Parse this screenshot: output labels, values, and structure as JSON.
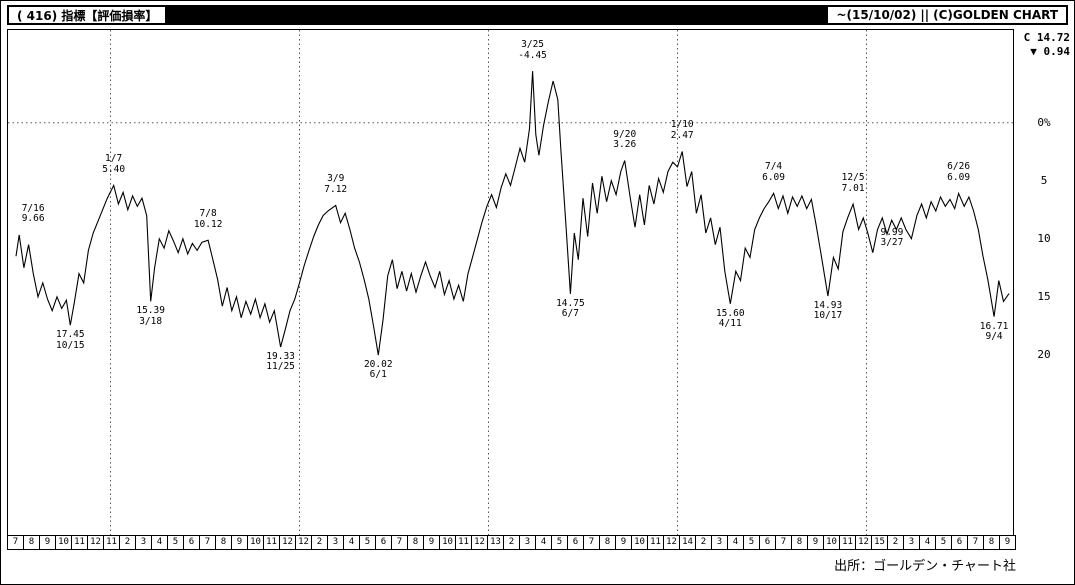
{
  "header": {
    "title": "( 416) 指標【評価損率】",
    "date_range": "~(15/10/02)",
    "separator": "||",
    "copyright": "(C)GOLDEN CHART"
  },
  "quote": {
    "close_label": "C",
    "close": "14.72",
    "change_arrow": "▼",
    "change": "0.94"
  },
  "axis": {
    "y_ticks": [
      {
        "label": "0%",
        "value": 0
      },
      {
        "label": "5",
        "value": 5
      },
      {
        "label": "10",
        "value": 10
      },
      {
        "label": "15",
        "value": 15
      },
      {
        "label": "20",
        "value": 20
      }
    ],
    "year_grid_t": [
      6,
      18,
      30,
      42,
      54
    ],
    "x_months": [
      "7",
      "8",
      "9",
      "10",
      "11",
      "12",
      "11",
      "2",
      "3",
      "4",
      "5",
      "6",
      "7",
      "8",
      "9",
      "10",
      "11",
      "12",
      "12",
      "2",
      "3",
      "4",
      "5",
      "6",
      "7",
      "8",
      "9",
      "10",
      "11",
      "12",
      "13",
      "2",
      "3",
      "4",
      "5",
      "6",
      "7",
      "8",
      "9",
      "10",
      "11",
      "12",
      "14",
      "2",
      "3",
      "4",
      "5",
      "6",
      "7",
      "8",
      "9",
      "10",
      "11",
      "12",
      "15",
      "2",
      "3",
      "4",
      "5",
      "6",
      "7",
      "8",
      "9"
    ]
  },
  "footer": {
    "source": "出所：ゴールデン・チャート社"
  },
  "chart_data": {
    "type": "line",
    "title": "指標【評価損率】 (valuation loss ratio, %, inverted axis)",
    "x_unit": "months since 2010-07 (weekly series, t fractional)",
    "x_range": [
      0,
      63.5
    ],
    "y_axis": {
      "inverted": true,
      "ticks": [
        0,
        5,
        10,
        15,
        20
      ],
      "top_value": -8,
      "bottom_value": 35.5
    },
    "grid": {
      "vertical_dotted_at_january": true,
      "horizontal_dotted_at_zero": true
    },
    "series": [
      {
        "name": "評価損率",
        "color": "#000000",
        "points": [
          [
            0,
            11.5
          ],
          [
            0.2,
            9.66
          ],
          [
            0.5,
            12.5
          ],
          [
            0.8,
            10.5
          ],
          [
            1.1,
            13
          ],
          [
            1.4,
            15
          ],
          [
            1.7,
            13.8
          ],
          [
            2,
            15.2
          ],
          [
            2.3,
            16.2
          ],
          [
            2.6,
            15
          ],
          [
            2.9,
            16
          ],
          [
            3.2,
            15.3
          ],
          [
            3.45,
            17.45
          ],
          [
            3.7,
            15.5
          ],
          [
            4,
            13
          ],
          [
            4.3,
            13.8
          ],
          [
            4.6,
            11
          ],
          [
            4.9,
            9.5
          ],
          [
            5.2,
            8.5
          ],
          [
            5.5,
            7.5
          ],
          [
            5.8,
            6.5
          ],
          [
            6.2,
            5.4
          ],
          [
            6.5,
            7
          ],
          [
            6.8,
            6
          ],
          [
            7.1,
            7.5
          ],
          [
            7.4,
            6.3
          ],
          [
            7.7,
            7.2
          ],
          [
            8,
            6.5
          ],
          [
            8.3,
            8
          ],
          [
            8.55,
            15.39
          ],
          [
            8.8,
            12.5
          ],
          [
            9.1,
            10
          ],
          [
            9.4,
            10.8
          ],
          [
            9.7,
            9.3
          ],
          [
            10,
            10.2
          ],
          [
            10.3,
            11.2
          ],
          [
            10.6,
            10
          ],
          [
            10.9,
            11.3
          ],
          [
            11.2,
            10.4
          ],
          [
            11.5,
            11
          ],
          [
            11.8,
            10.3
          ],
          [
            12.2,
            10.12
          ],
          [
            12.5,
            11.8
          ],
          [
            12.8,
            13.5
          ],
          [
            13.1,
            15.8
          ],
          [
            13.4,
            14.2
          ],
          [
            13.7,
            16.2
          ],
          [
            14,
            15
          ],
          [
            14.3,
            16.8
          ],
          [
            14.6,
            15.4
          ],
          [
            14.9,
            16.5
          ],
          [
            15.2,
            15.2
          ],
          [
            15.5,
            16.8
          ],
          [
            15.8,
            15.6
          ],
          [
            16.1,
            17.2
          ],
          [
            16.4,
            16.2
          ],
          [
            16.8,
            19.33
          ],
          [
            17.1,
            17.8
          ],
          [
            17.4,
            16.2
          ],
          [
            17.7,
            15.2
          ],
          [
            18,
            13.8
          ],
          [
            18.3,
            12.3
          ],
          [
            18.6,
            11
          ],
          [
            18.9,
            9.8
          ],
          [
            19.2,
            8.8
          ],
          [
            19.5,
            8
          ],
          [
            19.8,
            7.6
          ],
          [
            20.3,
            7.12
          ],
          [
            20.6,
            8.6
          ],
          [
            20.9,
            7.8
          ],
          [
            21.2,
            9.2
          ],
          [
            21.5,
            10.8
          ],
          [
            21.8,
            12
          ],
          [
            22.1,
            13.5
          ],
          [
            22.4,
            15.2
          ],
          [
            22.7,
            17.5
          ],
          [
            23,
            20.02
          ],
          [
            23.3,
            17
          ],
          [
            23.6,
            13.2
          ],
          [
            23.9,
            11.8
          ],
          [
            24.2,
            14.3
          ],
          [
            24.5,
            12.8
          ],
          [
            24.8,
            14.5
          ],
          [
            25.1,
            13
          ],
          [
            25.4,
            14.6
          ],
          [
            25.7,
            13.2
          ],
          [
            26,
            12
          ],
          [
            26.3,
            13.2
          ],
          [
            26.6,
            14.2
          ],
          [
            26.9,
            12.8
          ],
          [
            27.2,
            14.8
          ],
          [
            27.5,
            13.6
          ],
          [
            27.8,
            15.2
          ],
          [
            28.1,
            14
          ],
          [
            28.4,
            15.4
          ],
          [
            28.7,
            13
          ],
          [
            29,
            11.5
          ],
          [
            29.3,
            10
          ],
          [
            29.6,
            8.5
          ],
          [
            29.9,
            7.2
          ],
          [
            30.2,
            6.2
          ],
          [
            30.5,
            7.3
          ],
          [
            30.8,
            5.6
          ],
          [
            31.1,
            4.4
          ],
          [
            31.4,
            5.4
          ],
          [
            31.7,
            3.8
          ],
          [
            32,
            2.2
          ],
          [
            32.3,
            3.4
          ],
          [
            32.6,
            0.5
          ],
          [
            32.8,
            -4.45
          ],
          [
            33,
            1
          ],
          [
            33.2,
            2.8
          ],
          [
            33.5,
            0.2
          ],
          [
            33.8,
            -1.8
          ],
          [
            34.1,
            -3.6
          ],
          [
            34.4,
            -2
          ],
          [
            34.6,
            2.5
          ],
          [
            34.9,
            8.5
          ],
          [
            35.2,
            14.75
          ],
          [
            35.45,
            9.5
          ],
          [
            35.7,
            11.8
          ],
          [
            36,
            6.5
          ],
          [
            36.3,
            9.8
          ],
          [
            36.6,
            5.2
          ],
          [
            36.9,
            7.8
          ],
          [
            37.2,
            4.6
          ],
          [
            37.5,
            6.8
          ],
          [
            37.8,
            5
          ],
          [
            38.1,
            6.2
          ],
          [
            38.4,
            4.2
          ],
          [
            38.65,
            3.26
          ],
          [
            39,
            6.5
          ],
          [
            39.3,
            9
          ],
          [
            39.6,
            6.2
          ],
          [
            39.9,
            8.8
          ],
          [
            40.2,
            5.4
          ],
          [
            40.5,
            7
          ],
          [
            40.8,
            4.8
          ],
          [
            41.1,
            6
          ],
          [
            41.4,
            4.2
          ],
          [
            41.7,
            3.4
          ],
          [
            42,
            3.8
          ],
          [
            42.3,
            2.47
          ],
          [
            42.6,
            5.5
          ],
          [
            42.9,
            4.2
          ],
          [
            43.2,
            7.8
          ],
          [
            43.5,
            6.2
          ],
          [
            43.8,
            9.5
          ],
          [
            44.1,
            8.2
          ],
          [
            44.4,
            10.5
          ],
          [
            44.7,
            9
          ],
          [
            45,
            12.8
          ],
          [
            45.35,
            15.6
          ],
          [
            45.7,
            12.8
          ],
          [
            46,
            13.6
          ],
          [
            46.3,
            10.8
          ],
          [
            46.6,
            11.6
          ],
          [
            46.9,
            9.2
          ],
          [
            47.2,
            8.2
          ],
          [
            47.5,
            7.4
          ],
          [
            47.8,
            6.8
          ],
          [
            48.1,
            6.09
          ],
          [
            48.4,
            7.4
          ],
          [
            48.7,
            6.3
          ],
          [
            49,
            7.8
          ],
          [
            49.3,
            6.4
          ],
          [
            49.6,
            7.2
          ],
          [
            49.9,
            6.3
          ],
          [
            50.2,
            7.4
          ],
          [
            50.5,
            6.6
          ],
          [
            50.8,
            8.8
          ],
          [
            51.1,
            11.2
          ],
          [
            51.55,
            14.93
          ],
          [
            51.9,
            11.6
          ],
          [
            52.2,
            12.6
          ],
          [
            52.5,
            9.4
          ],
          [
            52.8,
            8.2
          ],
          [
            53.15,
            7.01
          ],
          [
            53.5,
            9.2
          ],
          [
            53.8,
            8.2
          ],
          [
            54.1,
            9.6
          ],
          [
            54.4,
            11.2
          ],
          [
            54.7,
            9.2
          ],
          [
            55,
            8.2
          ],
          [
            55.3,
            9.6
          ],
          [
            55.6,
            8.4
          ],
          [
            55.9,
            9.2
          ],
          [
            56.2,
            8.2
          ],
          [
            56.5,
            9.2
          ],
          [
            56.85,
            9.99
          ],
          [
            57.2,
            8
          ],
          [
            57.5,
            7
          ],
          [
            57.8,
            8.2
          ],
          [
            58.1,
            6.8
          ],
          [
            58.4,
            7.6
          ],
          [
            58.7,
            6.4
          ],
          [
            59,
            7.2
          ],
          [
            59.3,
            6.6
          ],
          [
            59.6,
            7.4
          ],
          [
            59.85,
            6.09
          ],
          [
            60.2,
            7.2
          ],
          [
            60.5,
            6.4
          ],
          [
            60.8,
            7.6
          ],
          [
            61.1,
            9.2
          ],
          [
            61.4,
            11.5
          ],
          [
            61.7,
            13.5
          ],
          [
            62.1,
            16.71
          ],
          [
            62.4,
            13.6
          ],
          [
            62.7,
            15.4
          ],
          [
            63.05,
            14.72
          ]
        ]
      }
    ],
    "annotations": [
      {
        "t": 0.2,
        "v": 9.66,
        "lines": [
          "7/16",
          "9.66"
        ],
        "pos": "above",
        "dx": 14
      },
      {
        "t": 3.45,
        "v": 17.45,
        "lines": [
          "17.45",
          "10/15"
        ],
        "pos": "below"
      },
      {
        "t": 6.2,
        "v": 5.4,
        "lines": [
          "1/7",
          "5.40"
        ],
        "pos": "above"
      },
      {
        "t": 8.55,
        "v": 15.39,
        "lines": [
          "15.39",
          "3/18"
        ],
        "pos": "below"
      },
      {
        "t": 12.2,
        "v": 10.12,
        "lines": [
          "7/8",
          "10.12"
        ],
        "pos": "above"
      },
      {
        "t": 16.8,
        "v": 19.33,
        "lines": [
          "19.33",
          "11/25"
        ],
        "pos": "below"
      },
      {
        "t": 20.3,
        "v": 7.12,
        "lines": [
          "3/9",
          "7.12"
        ],
        "pos": "above"
      },
      {
        "t": 23.0,
        "v": 20.02,
        "lines": [
          "20.02",
          "6/1"
        ],
        "pos": "below"
      },
      {
        "t": 32.8,
        "v": -4.45,
        "lines": [
          "3/25",
          "-4.45"
        ],
        "pos": "above"
      },
      {
        "t": 35.2,
        "v": 14.75,
        "lines": [
          "14.75",
          "6/7"
        ],
        "pos": "below"
      },
      {
        "t": 38.65,
        "v": 3.26,
        "lines": [
          "9/20",
          "3.26"
        ],
        "pos": "above"
      },
      {
        "t": 42.3,
        "v": 2.47,
        "lines": [
          "1/10",
          "2.47"
        ],
        "pos": "above"
      },
      {
        "t": 45.35,
        "v": 15.6,
        "lines": [
          "15.60",
          "4/11"
        ],
        "pos": "below"
      },
      {
        "t": 48.1,
        "v": 6.09,
        "lines": [
          "7/4",
          "6.09"
        ],
        "pos": "above"
      },
      {
        "t": 51.55,
        "v": 14.93,
        "lines": [
          "14.93",
          "10/17"
        ],
        "pos": "below"
      },
      {
        "t": 53.15,
        "v": 7.01,
        "lines": [
          "12/5",
          "7.01"
        ],
        "pos": "above"
      },
      {
        "t": 56.85,
        "v": 9.99,
        "lines": [
          "9.99",
          "3/27"
        ],
        "pos": "left"
      },
      {
        "t": 59.85,
        "v": 6.09,
        "lines": [
          "6/26",
          "6.09"
        ],
        "pos": "above"
      },
      {
        "t": 62.1,
        "v": 16.71,
        "lines": [
          "16.71",
          "9/4"
        ],
        "pos": "below"
      }
    ]
  }
}
